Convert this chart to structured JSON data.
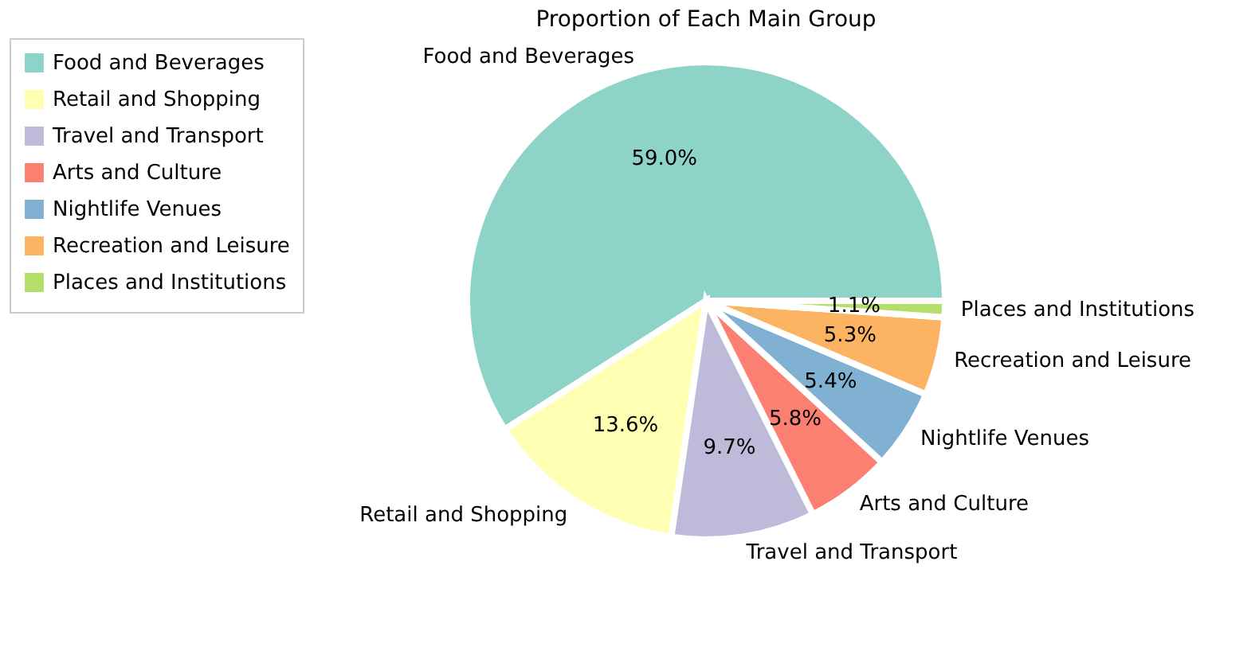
{
  "chart_data": {
    "type": "pie",
    "title": "Proportion of Each Main Group",
    "categories": [
      "Food and Beverages",
      "Retail and Shopping",
      "Travel and Transport",
      "Arts and Culture",
      "Nightlife Venues",
      "Recreation and Leisure",
      "Places and Institutions"
    ],
    "values": [
      59.0,
      13.6,
      9.7,
      5.8,
      5.4,
      5.3,
      1.1
    ],
    "colors": [
      "#8dd3c7",
      "#ffffb3",
      "#bebada",
      "#fb8072",
      "#80b1d3",
      "#fdb462",
      "#b3de69"
    ],
    "value_labels": [
      "59.0%",
      "13.6%",
      "9.7%",
      "5.8%",
      "5.4%",
      "5.3%",
      "1.1%"
    ],
    "legend": "left"
  }
}
